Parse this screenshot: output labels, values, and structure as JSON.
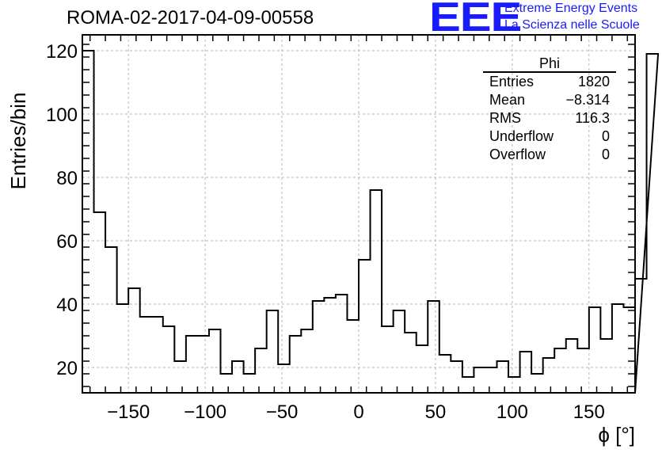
{
  "title": "ROMA-02-2017-04-09-00558",
  "branding": {
    "logo_text": "EEE",
    "line1": "Extreme Energy Events",
    "line2": "La Scienza nelle Scuole",
    "color": "#1a1aff"
  },
  "stats_box": {
    "name": "Phi",
    "rows": [
      {
        "label": "Entries",
        "value": "1820"
      },
      {
        "label": "Mean",
        "value": "−8.314"
      },
      {
        "label": "RMS",
        "value": "116.3"
      },
      {
        "label": "Underflow",
        "value": "0"
      },
      {
        "label": "Overflow",
        "value": "0"
      }
    ]
  },
  "chart_data": {
    "type": "bar",
    "histogram": "step",
    "xlabel": "ϕ [°]",
    "ylabel": "Entries/bin",
    "xlim": [
      -180,
      180
    ],
    "ylim": [
      12,
      125
    ],
    "bin_width": 7.5,
    "x_ticks": [
      -150,
      -100,
      -50,
      0,
      50,
      100,
      150
    ],
    "x_tick_labels": [
      "−150",
      "−100",
      "−50",
      "0",
      "50",
      "100",
      "150"
    ],
    "y_ticks": [
      20,
      40,
      60,
      80,
      100,
      120
    ],
    "grid": true,
    "values": [
      120,
      69,
      58,
      40,
      45,
      36,
      36,
      33,
      22,
      30,
      30,
      32,
      18,
      22,
      18,
      26,
      38,
      21,
      30,
      32,
      41,
      42,
      43,
      35,
      54,
      76,
      33,
      38,
      31,
      27,
      41,
      24,
      22,
      17,
      20,
      20,
      22,
      17,
      25,
      18,
      23,
      26,
      29,
      26,
      39,
      29,
      40,
      39,
      48,
      119
    ]
  }
}
